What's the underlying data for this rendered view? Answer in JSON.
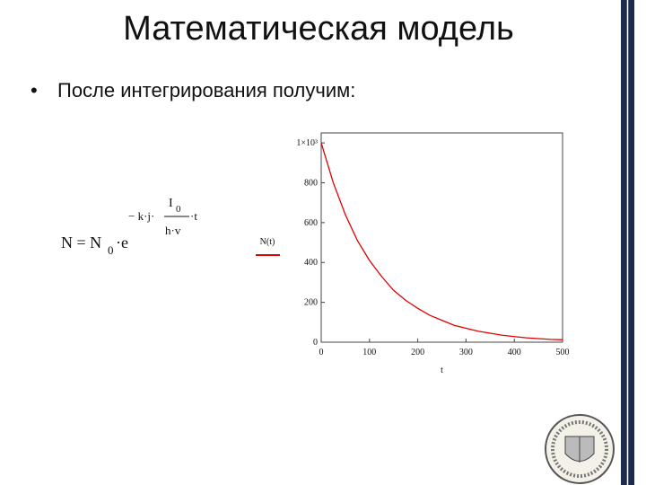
{
  "slide": {
    "title": "Математическая модель",
    "bullet": "После интегрирования получим:"
  },
  "formula": {
    "lhs": "N = N",
    "lhs_sub": "0",
    "base": "·e",
    "exp_left": "− k·j·",
    "exp_num": "I",
    "exp_num_sub": "0",
    "exp_den": "h·v",
    "exp_right": "·t"
  },
  "chart_data": {
    "type": "line",
    "x": [
      0,
      25,
      50,
      75,
      100,
      125,
      150,
      175,
      200,
      225,
      250,
      275,
      300,
      325,
      350,
      375,
      400,
      425,
      450,
      475,
      500
    ],
    "series": [
      {
        "name": "N(t)",
        "color": "#e00000",
        "values": [
          1000,
          800,
          640,
          510,
          410,
          330,
          260,
          210,
          170,
          135,
          110,
          85,
          70,
          55,
          45,
          35,
          28,
          22,
          18,
          14,
          12
        ]
      }
    ],
    "xlabel": "t",
    "xlim": [
      0,
      500
    ],
    "ylim": [
      0,
      1050
    ],
    "xticks": [
      0,
      100,
      200,
      300,
      400,
      500
    ],
    "yticks": [
      0,
      200,
      400,
      600,
      800,
      {
        "value": 1000,
        "label": "1×10³"
      }
    ]
  }
}
